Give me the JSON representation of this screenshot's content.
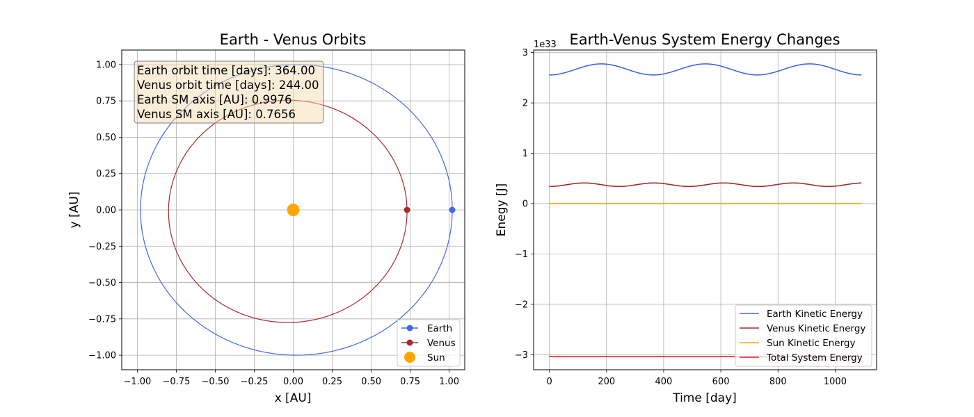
{
  "chart_data": [
    {
      "type": "line",
      "title": "Earth - Venus Orbits",
      "xlabel": "x [AU]",
      "ylabel": "y [AU]",
      "xlim": [
        -1.1,
        1.1
      ],
      "ylim": [
        -1.1,
        1.1
      ],
      "xticks": [
        -1.0,
        -0.75,
        -0.5,
        -0.25,
        0.0,
        0.25,
        0.5,
        0.75,
        1.0
      ],
      "xtick_labels": [
        "−1.00",
        "−0.75",
        "−0.50",
        "−0.25",
        "0.00",
        "0.25",
        "0.50",
        "0.75",
        "1.00"
      ],
      "yticks": [
        -1.0,
        -0.75,
        -0.5,
        -0.25,
        0.0,
        0.25,
        0.5,
        0.75,
        1.0
      ],
      "ytick_labels": [
        "−1.00",
        "−0.75",
        "−0.50",
        "−0.25",
        "0.00",
        "0.25",
        "0.50",
        "0.75",
        "1.00"
      ],
      "grid": true,
      "legend_position": "bottom-right",
      "orbits": [
        {
          "name": "Earth",
          "color": "#4169e1",
          "center": [
            0.02,
            0.0
          ],
          "semi_axes": [
            1.0,
            1.0
          ]
        },
        {
          "name": "Venus",
          "color": "#a52a2a",
          "center": [
            -0.035,
            -0.01
          ],
          "semi_axes": [
            0.765,
            0.765
          ]
        }
      ],
      "points": [
        {
          "name": "Earth",
          "x": 1.02,
          "y": 0.0,
          "color": "#4169e1",
          "marker": "circle-small"
        },
        {
          "name": "Venus",
          "x": 0.73,
          "y": 0.0,
          "color": "#a52a2a",
          "marker": "circle-small"
        },
        {
          "name": "Sun",
          "x": 0.0,
          "y": 0.0,
          "color": "#ffa500",
          "marker": "circle-large"
        }
      ],
      "info_lines": [
        "Earth orbit time [days]: 364.00",
        "Venus orbit time [days]: 244.00",
        "Earth SM axis [AU]: 0.9976",
        "Venus SM axis [AU]: 0.7656"
      ],
      "info_box_position": "top-left",
      "legend": [
        {
          "label": "Earth",
          "color": "#4169e1",
          "style": "line-marker"
        },
        {
          "label": "Venus",
          "color": "#a52a2a",
          "style": "line-marker"
        },
        {
          "label": "Sun",
          "color": "#ffa500",
          "style": "marker"
        }
      ]
    },
    {
      "type": "line",
      "title": "Earth-Venus System Energy Changes",
      "xlabel": "Time [day]",
      "ylabel": "Enegy [J]",
      "y_scale_label": "1e33",
      "xlim": [
        -55,
        1145
      ],
      "ylim": [
        -3.3,
        3.05
      ],
      "xticks": [
        0,
        200,
        400,
        600,
        800,
        1000
      ],
      "xtick_labels": [
        "0",
        "200",
        "400",
        "600",
        "800",
        "1000"
      ],
      "yticks": [
        -3,
        -2,
        -1,
        0,
        1,
        2,
        3
      ],
      "ytick_labels": [
        "−3",
        "−2",
        "−1",
        "0",
        "1",
        "2",
        "3"
      ],
      "grid": true,
      "legend_position": "bottom-right",
      "x_range": [
        0,
        1092
      ],
      "series": [
        {
          "name": "Earth Kinetic Energy",
          "color": "#4169e1",
          "form": "sine",
          "mean": 2.665,
          "amplitude": 0.11,
          "period": 364,
          "phase": 0
        },
        {
          "name": "Venus Kinetic Energy",
          "color": "#a52a2a",
          "form": "sine",
          "mean": 0.375,
          "amplitude": 0.035,
          "period": 244,
          "phase": 0
        },
        {
          "name": "Sun Kinetic Energy",
          "color": "#ffa500",
          "form": "constant",
          "value": 0.0
        },
        {
          "name": "Total System Energy",
          "color": "#e31a1c",
          "form": "constant",
          "value": -3.04
        }
      ]
    }
  ]
}
